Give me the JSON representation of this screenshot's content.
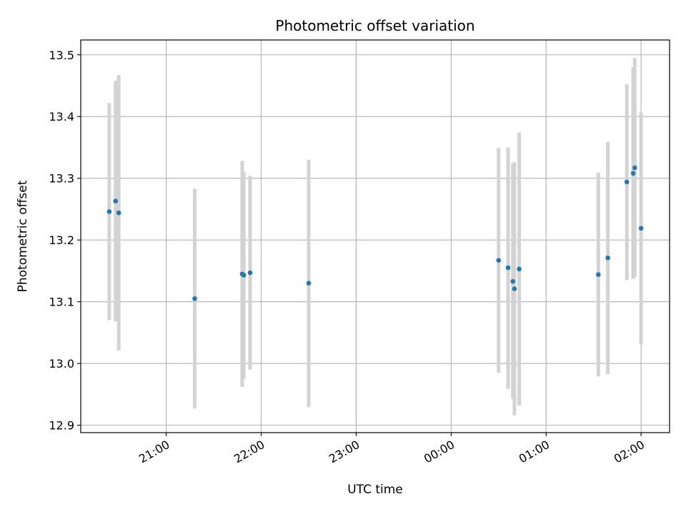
{
  "chart_data": {
    "type": "scatter",
    "title": "Photometric offset variation",
    "xlabel": "UTC time",
    "ylabel": "Photometric offset",
    "grid": true,
    "x_ticks": [
      "21:00",
      "22:00",
      "23:00",
      "00:00",
      "01:00",
      "02:00"
    ],
    "y_ticks": [
      "12.9",
      "13.0",
      "13.1",
      "13.2",
      "13.3",
      "13.4",
      "13.5"
    ],
    "xlim": [
      "20:06",
      "02:18"
    ],
    "ylim": [
      12.888,
      13.524
    ],
    "point_color": "#1f77b4",
    "errorbar_color": "#d3d3d3",
    "series": [
      {
        "points": [
          {
            "x": "20:24",
            "y": 13.246,
            "ylow": 13.07,
            "yhigh": 13.422
          },
          {
            "x": "20:28",
            "y": 13.263,
            "ylow": 13.068,
            "yhigh": 13.458
          },
          {
            "x": "20:30",
            "y": 13.244,
            "ylow": 13.021,
            "yhigh": 13.467
          },
          {
            "x": "21:18",
            "y": 13.105,
            "ylow": 12.927,
            "yhigh": 13.283
          },
          {
            "x": "21:48",
            "y": 13.145,
            "ylow": 12.962,
            "yhigh": 13.328
          },
          {
            "x": "21:49",
            "y": 13.143,
            "ylow": 12.975,
            "yhigh": 13.311
          },
          {
            "x": "21:53",
            "y": 13.147,
            "ylow": 12.99,
            "yhigh": 13.304
          },
          {
            "x": "22:30",
            "y": 13.13,
            "ylow": 12.929,
            "yhigh": 13.33
          },
          {
            "x": "00:30",
            "y": 13.167,
            "ylow": 12.985,
            "yhigh": 13.349
          },
          {
            "x": "00:36",
            "y": 13.155,
            "ylow": 12.959,
            "yhigh": 13.35
          },
          {
            "x": "00:39",
            "y": 13.133,
            "ylow": 12.943,
            "yhigh": 13.324
          },
          {
            "x": "00:40",
            "y": 13.121,
            "ylow": 12.916,
            "yhigh": 13.326
          },
          {
            "x": "00:43",
            "y": 13.153,
            "ylow": 12.932,
            "yhigh": 13.374
          },
          {
            "x": "01:33",
            "y": 13.144,
            "ylow": 12.979,
            "yhigh": 13.309
          },
          {
            "x": "01:39",
            "y": 13.171,
            "ylow": 12.983,
            "yhigh": 13.359
          },
          {
            "x": "01:51",
            "y": 13.294,
            "ylow": 13.135,
            "yhigh": 13.452
          },
          {
            "x": "01:55",
            "y": 13.308,
            "ylow": 13.137,
            "yhigh": 13.48
          },
          {
            "x": "01:56",
            "y": 13.317,
            "ylow": 13.14,
            "yhigh": 13.495
          },
          {
            "x": "02:00",
            "y": 13.219,
            "ylow": 13.031,
            "yhigh": 13.407
          }
        ]
      }
    ]
  }
}
